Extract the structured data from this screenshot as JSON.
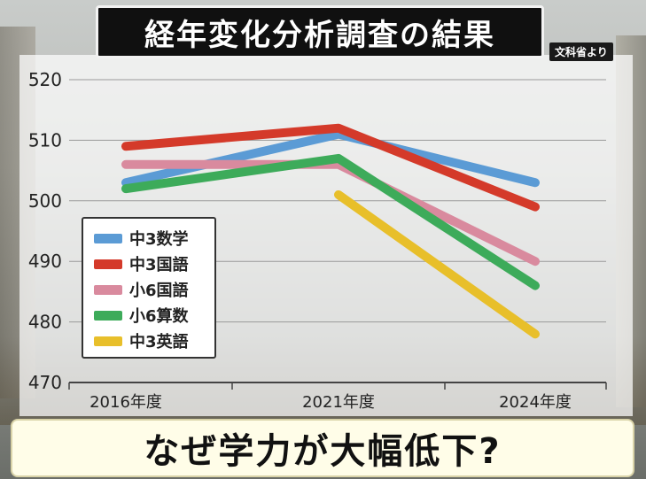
{
  "header": {
    "title": "経年変化分析調査の結果",
    "source": "文科省より"
  },
  "caption": "なぜ学力が大幅低下?",
  "chart_data": {
    "type": "line",
    "title": "経年変化分析調査の結果",
    "xlabel": "",
    "ylabel": "",
    "categories": [
      "2016年度",
      "2021年度",
      "2024年度"
    ],
    "ylim": [
      470,
      520
    ],
    "yticks": [
      470,
      480,
      490,
      500,
      510,
      520
    ],
    "grid": true,
    "legend_position": "bottom-left",
    "series": [
      {
        "name": "中3数学",
        "color": "#5b9bd5",
        "values": [
          503,
          511,
          503
        ]
      },
      {
        "name": "中3国語",
        "color": "#d43a2a",
        "values": [
          509,
          512,
          499
        ]
      },
      {
        "name": "小6国語",
        "color": "#d98a9e",
        "values": [
          506,
          506,
          490
        ]
      },
      {
        "name": "小6算数",
        "color": "#3dab5a",
        "values": [
          502,
          507,
          486
        ]
      },
      {
        "name": "中3英語",
        "color": "#e8bf2a",
        "values": [
          null,
          501,
          478
        ]
      }
    ]
  }
}
